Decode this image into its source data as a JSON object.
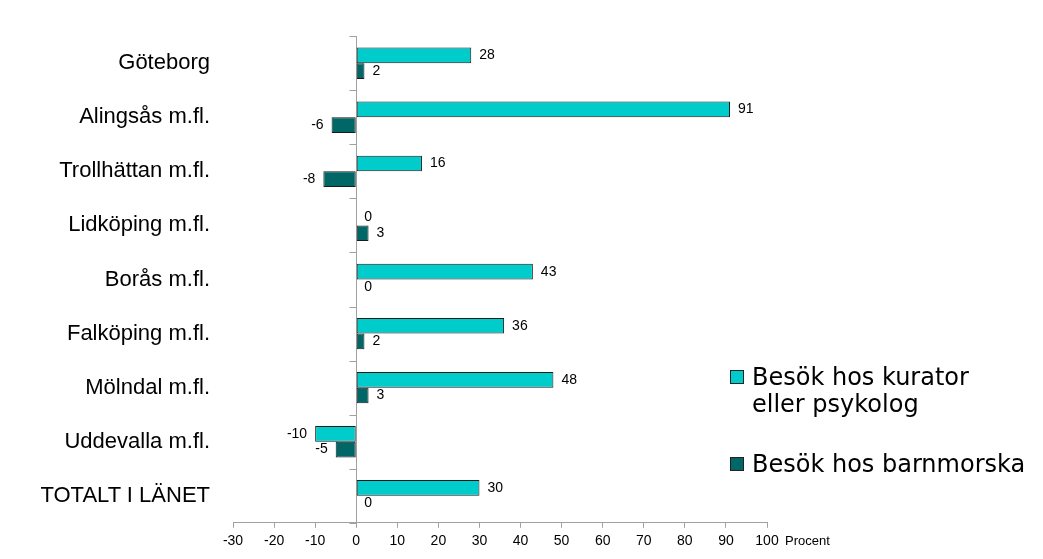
{
  "chart_data": {
    "type": "bar",
    "orientation": "horizontal",
    "xlabel": "Procent",
    "categories": [
      "Göteborg",
      "Alingsås m.fl.",
      "Trollhättan m.fl.",
      "Lidköping m.fl.",
      "Borås m.fl.",
      "Falköping m.fl.",
      "Mölndal m.fl.",
      "Uddevalla m.fl.",
      "TOTALT I LÄNET"
    ],
    "series": [
      {
        "name": "Besök hos kurator eller psykolog",
        "color": "#00cccc",
        "values": [
          28,
          91,
          16,
          0,
          43,
          36,
          48,
          -10,
          30
        ]
      },
      {
        "name": "Besök hos barnmorska",
        "color": "#006666",
        "values": [
          2,
          -6,
          -8,
          3,
          0,
          2,
          3,
          -5,
          0
        ]
      }
    ],
    "xlim": [
      -30,
      100
    ],
    "xticks": [
      -30,
      -20,
      -10,
      0,
      10,
      20,
      30,
      40,
      50,
      60,
      70,
      80,
      90,
      100
    ],
    "data_labels": true,
    "legend": "right"
  }
}
